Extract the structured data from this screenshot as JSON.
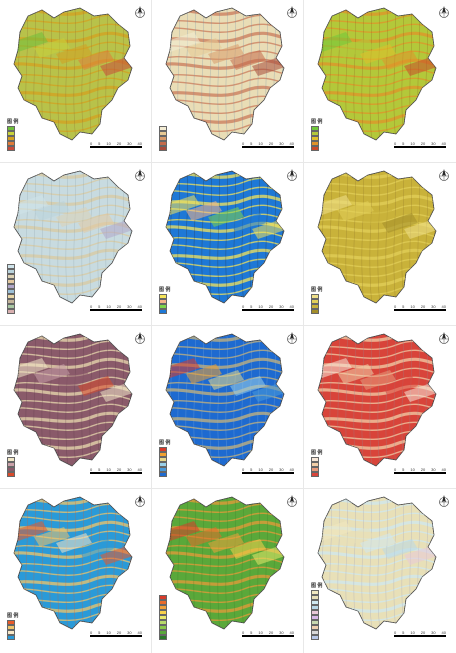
{
  "scale_bar": {
    "ticks": [
      "0",
      "5",
      "10",
      "20",
      "30",
      "40"
    ]
  },
  "panels": [
    {
      "id": "p1",
      "legend_title": "图 例",
      "legend_rows": 5,
      "fill": "#b8c24a",
      "accent": "#d4a020",
      "stroke": "#8a6a30",
      "swatches": [
        "#6fbf3a",
        "#c8d23a",
        "#d4a020",
        "#e07b39",
        "#c94a3a"
      ]
    },
    {
      "id": "p2",
      "legend_title": "",
      "legend_rows": 5,
      "fill": "#e9ddb6",
      "accent": "#c97a5a",
      "stroke": "#6a8aa8",
      "swatches": [
        "#f3ecd4",
        "#e6c893",
        "#d89a6a",
        "#c46a4a",
        "#a84a3a"
      ]
    },
    {
      "id": "p3",
      "legend_title": "图 例",
      "legend_rows": 5,
      "fill": "#b3c83a",
      "accent": "#e0932a",
      "stroke": "#8a5a20",
      "swatches": [
        "#6fc83a",
        "#b3c83a",
        "#e0c02a",
        "#e0932a",
        "#c94a2a"
      ]
    },
    {
      "id": "p4",
      "legend_title": "",
      "legend_rows": 10,
      "fill": "#c8dbe0",
      "accent": "#d9c9a0",
      "stroke": "#8aa0a8",
      "swatches": [
        "#cfe3ea",
        "#b9d3dc",
        "#dcd2b4",
        "#e3c9a0",
        "#b0a6c8",
        "#9cc0d8",
        "#e8d7a8",
        "#c3b49a",
        "#a9c7a3",
        "#d8b0b0"
      ]
    },
    {
      "id": "p5",
      "legend_title": "图 例",
      "legend_rows": 4,
      "fill": "#1e78d6",
      "accent": "#f5e45a",
      "stroke": "#2a2a2a",
      "swatches": [
        "#f5e45a",
        "#f5b48a",
        "#7fd44a",
        "#1e78d6"
      ]
    },
    {
      "id": "p6",
      "legend_title": "图 例",
      "legend_rows": 4,
      "fill": "#c9b23a",
      "accent": "#e2cf5a",
      "stroke": "#8a7028",
      "swatches": [
        "#efe08a",
        "#e2cf5a",
        "#c9b23a",
        "#a38e2a"
      ]
    },
    {
      "id": "p7",
      "legend_title": "图 例",
      "legend_rows": 4,
      "fill": "#8a5a6a",
      "accent": "#e9dcb0",
      "stroke": "#5a3a48",
      "swatches": [
        "#f2e8c8",
        "#c9a0a8",
        "#8a5a6a",
        "#d84a2a"
      ]
    },
    {
      "id": "p8",
      "legend_title": "图 例",
      "legend_rows": 6,
      "fill": "#1e6ad0",
      "accent": "#c9b47a",
      "stroke": "#8ab4d8",
      "swatches": [
        "#d83a2a",
        "#f0a030",
        "#e8d88a",
        "#9ad0e8",
        "#4a9ad8",
        "#1e6ad0"
      ]
    },
    {
      "id": "p9",
      "legend_title": "图 例",
      "legend_rows": 4,
      "fill": "#d8443a",
      "accent": "#f2cfa8",
      "stroke": "#8a8a9a",
      "swatches": [
        "#f8e8d8",
        "#f2cfa8",
        "#e89a7a",
        "#d8443a"
      ]
    },
    {
      "id": "p10",
      "legend_title": "图 例",
      "legend_rows": 4,
      "fill": "#2a9ad8",
      "accent": "#f0c46a",
      "stroke": "#d85a2a",
      "swatches": [
        "#e85a2a",
        "#f0c46a",
        "#f8e8c8",
        "#2a9ad8"
      ]
    },
    {
      "id": "p11",
      "legend_title": "",
      "legend_rows": 9,
      "fill": "#5aa83a",
      "accent": "#e89a3a",
      "stroke": "#3a7a28",
      "swatches": [
        "#d83a2a",
        "#e86a2a",
        "#f0a03a",
        "#f8d04a",
        "#e8e86a",
        "#b8d86a",
        "#8ac84a",
        "#5aa83a",
        "#2a7a28"
      ]
    },
    {
      "id": "p12",
      "legend_title": "图 例",
      "legend_rows": 10,
      "fill": "#e8e0b8",
      "accent": "#cfe8f0",
      "stroke": "#9a9ab8",
      "swatches": [
        "#f0e8c0",
        "#e8e0b8",
        "#cfe8f0",
        "#b8d8e8",
        "#e8c8d8",
        "#d8b8e8",
        "#c8d8b0",
        "#f0d0b0",
        "#d8d8d8",
        "#b8c8e8"
      ]
    }
  ]
}
